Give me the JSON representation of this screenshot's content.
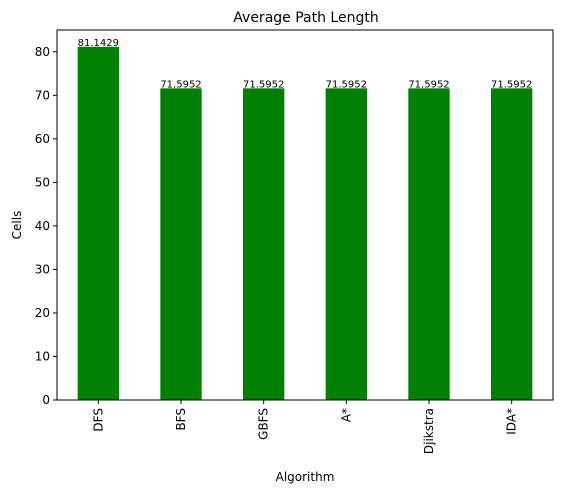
{
  "chart_data": {
    "type": "bar",
    "title": "Average Path Length",
    "xlabel": "Algorithm",
    "ylabel": "Cells",
    "categories": [
      "DFS",
      "BFS",
      "GBFS",
      "A*",
      "Djikstra",
      "IDA*"
    ],
    "values": [
      81.1429,
      71.5952,
      71.5952,
      71.5952,
      71.5952,
      71.5952
    ],
    "data_labels": [
      "81.1429",
      "71.5952",
      "71.5952",
      "71.5952",
      "71.5952",
      "71.5952"
    ],
    "ylim": [
      0,
      85
    ],
    "yticks": [
      0,
      10,
      20,
      30,
      40,
      50,
      60,
      70,
      80
    ],
    "bar_color": "#008000",
    "grid": false,
    "legend": "none",
    "tick_label_rotation": "vertical"
  }
}
